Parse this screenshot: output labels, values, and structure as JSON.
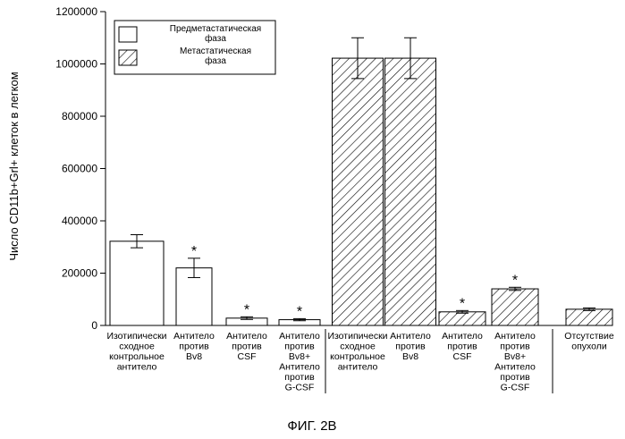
{
  "figure": {
    "caption": "ФИГ. 2В"
  },
  "chart_data": {
    "type": "bar",
    "ylabel": "Число CD11b+Grl+ клеток в легком",
    "ylim": [
      0,
      1200000
    ],
    "yticks": [
      "0",
      "200000",
      "400000",
      "600000",
      "800000",
      "1000000",
      "1200000"
    ],
    "ytick_values": [
      0,
      200000,
      400000,
      600000,
      800000,
      1000000,
      1200000
    ],
    "grid": false,
    "legend_position": "top-left",
    "series": [
      {
        "name": "Предметастатическая фаза",
        "pattern": "open"
      },
      {
        "name": "Метастатическая фаза",
        "pattern": "hatched"
      }
    ],
    "categories": [
      "Изотипически сходное контрольное антитело",
      "Антитело против Bv8",
      "Антитело против CSF",
      "Антитело против Bv8+ Антитело против G-CSF",
      "Изотипически сходное контрольное антитело",
      "Антитело против Bv8",
      "Антитело против CSF",
      "Антитело против Bv8+ Антитело против G-CSF",
      "Отсутствие опухоли"
    ],
    "category_lines": [
      [
        "Изотипически",
        "сходное",
        "контрольное",
        "антитело"
      ],
      [
        "Антитело",
        "против",
        "Bv8"
      ],
      [
        "Антитело",
        "против",
        "CSF"
      ],
      [
        "Антитело",
        "против",
        "Bv8+",
        "Антитело",
        "против",
        "G-CSF"
      ],
      [
        "Изотипически",
        "сходное",
        "контрольное",
        "антитело"
      ],
      [
        "Антитело",
        "против",
        "Bv8"
      ],
      [
        "Антитело",
        "против",
        "CSF"
      ],
      [
        "Антитело",
        "против",
        "Bv8+",
        "Антитело",
        "против",
        "G-CSF"
      ],
      [
        "Отсутствие",
        "опухоли"
      ]
    ],
    "bars": [
      {
        "series": 0,
        "value": 322000,
        "error": 25000,
        "significant": false
      },
      {
        "series": 0,
        "value": 220000,
        "error": 37000,
        "significant": true
      },
      {
        "series": 0,
        "value": 28000,
        "error": 5000,
        "significant": true
      },
      {
        "series": 0,
        "value": 22000,
        "error": 4000,
        "significant": true
      },
      {
        "series": 1,
        "value": 1022000,
        "error": 78000,
        "significant": false
      },
      {
        "series": 1,
        "value": 1022000,
        "error": 78000,
        "significant": false
      },
      {
        "series": 1,
        "value": 52000,
        "error": 5000,
        "significant": true
      },
      {
        "series": 1,
        "value": 140000,
        "error": 6000,
        "significant": true
      },
      {
        "series": 1,
        "value": 62000,
        "error": 5000,
        "significant": false
      }
    ],
    "significance_marker": "*"
  }
}
